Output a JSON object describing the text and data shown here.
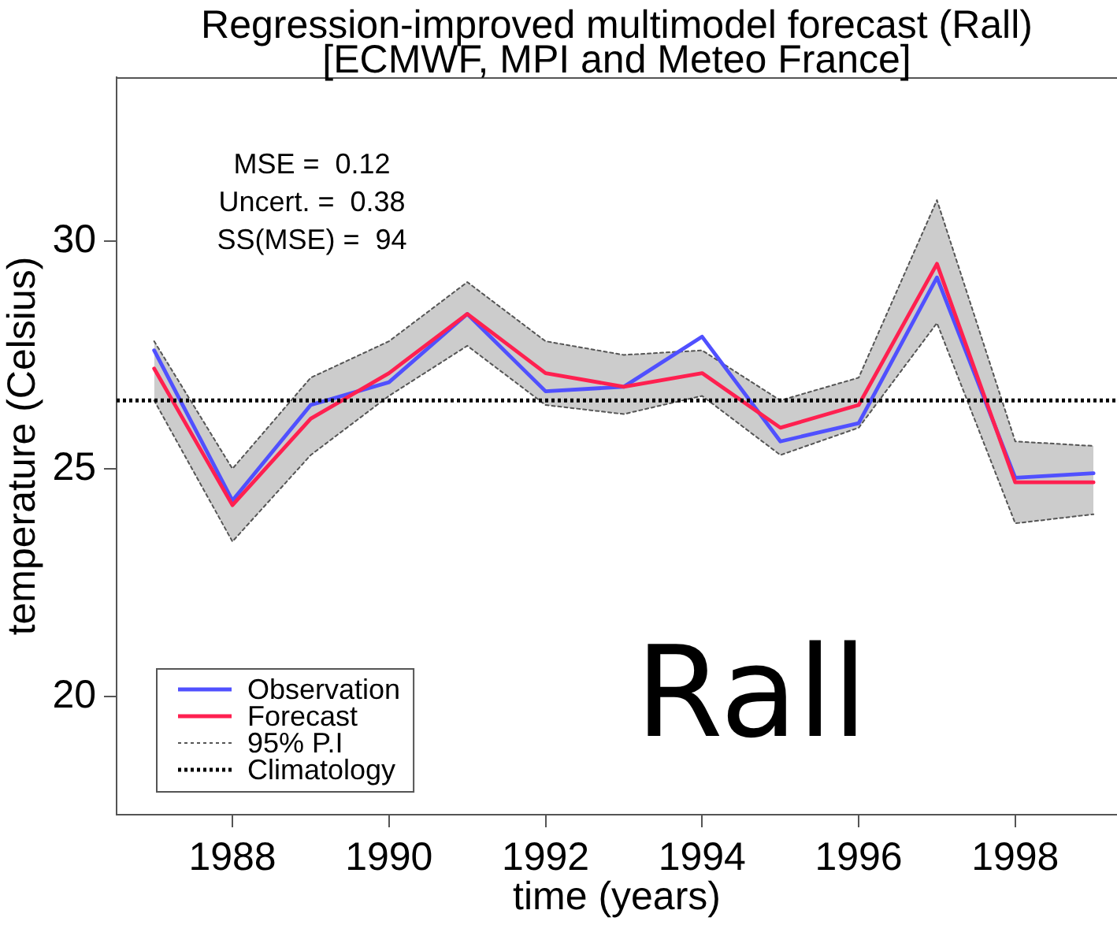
{
  "chart_data": {
    "type": "line",
    "title": "Regression-improved multimodel forecast (Rall)",
    "subtitle": "[ECMWF, MPI and Meteo France]",
    "xlabel": "time (years)",
    "ylabel": "temperature (Celsius)",
    "annotations": [
      "MSE =  0.12",
      "Uncert. =  0.38",
      "SS(MSE) =  94",
      "Rall"
    ],
    "x": [
      1987,
      1988,
      1989,
      1990,
      1991,
      1992,
      1993,
      1994,
      1995,
      1996,
      1997,
      1998,
      1999
    ],
    "series": [
      {
        "name": "Observation",
        "color": "#5050ff",
        "values": [
          27.6,
          24.3,
          26.4,
          26.9,
          28.4,
          26.7,
          26.8,
          27.9,
          25.6,
          26.0,
          29.2,
          24.8,
          24.9
        ]
      },
      {
        "name": "Forecast",
        "color": "#ff2050",
        "values": [
          27.2,
          24.2,
          26.1,
          27.1,
          28.4,
          27.1,
          26.8,
          27.1,
          25.9,
          26.4,
          29.5,
          24.7,
          24.7
        ],
        "lower": [
          26.5,
          23.4,
          25.3,
          26.6,
          27.7,
          26.4,
          26.2,
          26.6,
          25.3,
          25.9,
          28.2,
          23.8,
          24.0
        ],
        "upper": [
          27.8,
          25.0,
          27.0,
          27.8,
          29.1,
          27.8,
          27.5,
          27.6,
          26.5,
          27.0,
          30.9,
          25.6,
          25.5
        ]
      },
      {
        "name": "95% P.I",
        "color": "#555555",
        "line_style": "dotted",
        "values": [
          27.8,
          25.0,
          27.0,
          27.8,
          29.1,
          27.8,
          27.5,
          27.6,
          26.5,
          27.0,
          30.9,
          25.6,
          25.5
        ]
      },
      {
        "color": "#555555",
        "line_style": "dotted",
        "values": [
          26.5,
          23.4,
          25.3,
          26.6,
          27.7,
          26.4,
          26.2,
          26.6,
          25.3,
          25.9,
          28.2,
          23.8,
          24.0
        ]
      }
    ],
    "ref_lines": [
      {
        "axis": "y",
        "value": 26.5,
        "label": "Climatology",
        "color": "#000000",
        "line_style": "dotted"
      }
    ],
    "xlim": [
      1986.52,
      1999.3
    ],
    "xticks": [
      1988,
      1990,
      1992,
      1994,
      1996,
      1998
    ],
    "ylim": [
      17.4,
      33.6
    ],
    "yticks": [
      20,
      25,
      30
    ],
    "grid": false,
    "legend": "bottom left",
    "line_style": "solid",
    "marker": "none"
  }
}
